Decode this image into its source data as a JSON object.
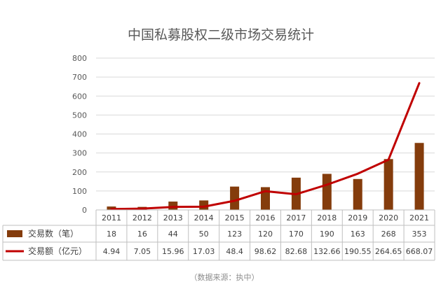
{
  "chart_data": {
    "type": "bar",
    "title": "中国私募股权二级市场交易统计",
    "categories": [
      "2011",
      "2012",
      "2013",
      "2014",
      "2015",
      "2016",
      "2017",
      "2018",
      "2019",
      "2020",
      "2021"
    ],
    "ylim": [
      0,
      800
    ],
    "yticks": [
      0,
      100,
      200,
      300,
      400,
      500,
      600,
      700,
      800
    ],
    "grid": true,
    "legend": "data-table-bottom",
    "series": [
      {
        "name": "交易数（笔）",
        "type": "bar",
        "color": "#843C0C",
        "values": [
          18,
          16,
          44,
          50,
          123,
          120,
          170,
          190,
          163,
          268,
          353
        ],
        "labels": [
          "18",
          "16",
          "44",
          "50",
          "123",
          "120",
          "170",
          "190",
          "163",
          "268",
          "353"
        ]
      },
      {
        "name": "交易额（亿元）",
        "type": "line",
        "color": "#C00000",
        "values": [
          4.94,
          7.05,
          15.96,
          17.03,
          48.4,
          98.62,
          82.68,
          132.66,
          190.55,
          264.65,
          668.07
        ],
        "labels": [
          "4.94",
          "7.05",
          "15.96",
          "17.03",
          "48.4",
          "98.62",
          "82.68",
          "132.66",
          "190.55",
          "264.65",
          "668.07"
        ]
      }
    ]
  },
  "source": "（数据来源：执中）"
}
